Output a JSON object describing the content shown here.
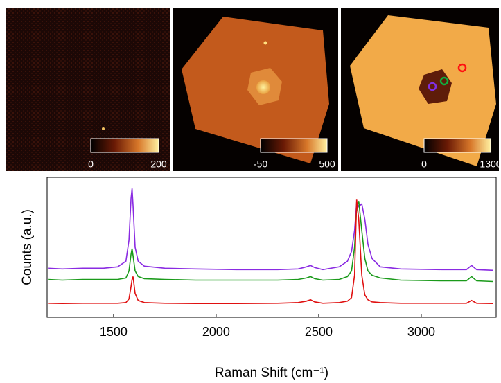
{
  "chart_data": [
    {
      "type": "heatmap",
      "clim": [
        0,
        200
      ],
      "cticks": [
        0,
        200
      ]
    },
    {
      "type": "heatmap",
      "clim": [
        -50,
        500
      ],
      "cticks": [
        -50,
        500
      ]
    },
    {
      "type": "heatmap",
      "clim": [
        0,
        1300
      ],
      "cticks": [
        0,
        1300
      ]
    },
    {
      "type": "line",
      "xlabel": "Raman Shift (cm⁻¹)",
      "ylabel": "Counts (a.u.)",
      "xlim": [
        1176,
        3365
      ],
      "xticks": [
        1500,
        2000,
        2500,
        3000
      ],
      "ylim": [
        0,
        100
      ],
      "x": [
        1180,
        1250,
        1350,
        1450,
        1520,
        1560,
        1575,
        1585,
        1590,
        1595,
        1605,
        1620,
        1650,
        1750,
        1900,
        2100,
        2300,
        2400,
        2440,
        2460,
        2480,
        2520,
        2600,
        2640,
        2660,
        2675,
        2685,
        2695,
        2710,
        2725,
        2740,
        2760,
        2800,
        2900,
        3100,
        3220,
        3245,
        3270,
        3350
      ],
      "series": [
        {
          "color": "#8a2be2",
          "values": [
            35,
            34.5,
            35,
            35,
            36,
            40,
            55,
            85,
            92,
            80,
            50,
            40,
            36.5,
            35,
            34.5,
            34,
            34,
            34.5,
            36,
            37,
            35.5,
            34,
            36,
            40,
            47,
            62,
            82,
            79,
            81,
            70,
            52,
            42,
            36,
            34.5,
            34,
            34,
            37,
            34,
            33.5
          ]
        },
        {
          "color": "#1a9a1a",
          "values": [
            27,
            26.5,
            27,
            27,
            27,
            28,
            33,
            45,
            49,
            44,
            33,
            29,
            27.5,
            27,
            26.5,
            26.5,
            26.5,
            27,
            28,
            29,
            27.5,
            26.5,
            27,
            29,
            33,
            50,
            78,
            83,
            62,
            42,
            33,
            30,
            28,
            26.5,
            26,
            26,
            29,
            26,
            25.5
          ]
        },
        {
          "color": "#e01010",
          "values": [
            10,
            9.8,
            10,
            10,
            10,
            10.5,
            13,
            22,
            27,
            29,
            17,
            12,
            10.5,
            10,
            9.8,
            9.8,
            10,
            10.5,
            11.5,
            12.5,
            11,
            10,
            10.5,
            11.5,
            14,
            30,
            84,
            70,
            30,
            16,
            12.5,
            11,
            10.5,
            10,
            10,
            10,
            12,
            10,
            9.8
          ]
        }
      ]
    }
  ]
}
